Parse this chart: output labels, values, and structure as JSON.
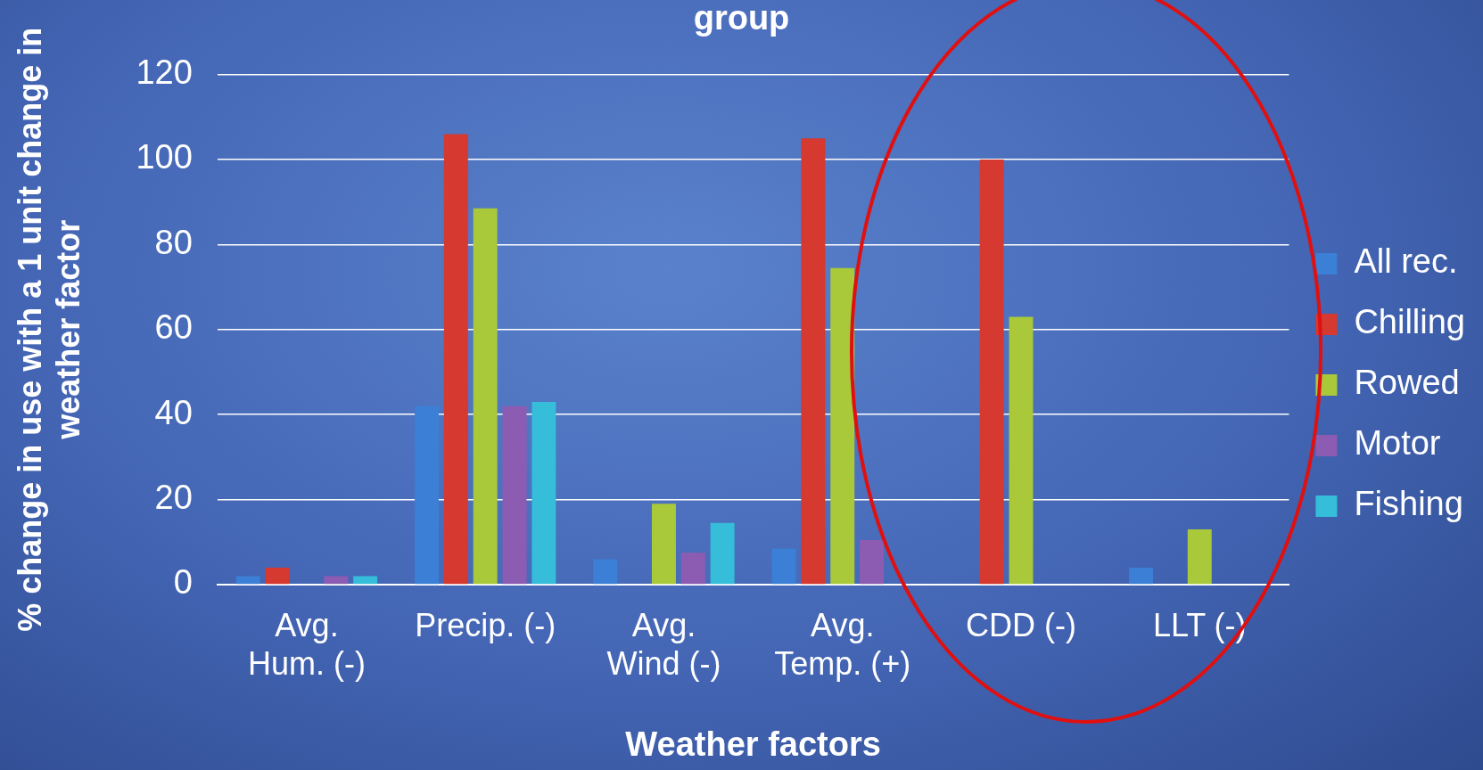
{
  "chart_data": {
    "type": "bar",
    "title": "group",
    "xlabel": "Weather factors",
    "ylabel": "% change in use with a 1 unit change in weather factor",
    "categories": [
      "Avg. Hum. (-)",
      "Precip. (-)",
      "Avg. Wind (-)",
      "Avg. Temp. (+)",
      "CDD (-)",
      "LLT (-)"
    ],
    "series": [
      {
        "name": "All rec.",
        "color": "#3c7fd6",
        "values": [
          2,
          42,
          6,
          8.5,
          null,
          4
        ]
      },
      {
        "name": "Chilling",
        "color": "#d5392f",
        "values": [
          4,
          106,
          null,
          105,
          100,
          null
        ]
      },
      {
        "name": "Rowed",
        "color": "#a9c93a",
        "values": [
          null,
          88.5,
          19,
          74.5,
          63,
          13
        ]
      },
      {
        "name": "Motor",
        "color": "#8c5cb3",
        "values": [
          2,
          42,
          7.5,
          10.5,
          null,
          null
        ]
      },
      {
        "name": "Fishing",
        "color": "#35bdd9",
        "values": [
          2,
          43,
          14.5,
          null,
          null,
          null
        ]
      }
    ],
    "ylim": [
      0,
      120
    ],
    "yticks": [
      0,
      20,
      40,
      60,
      80,
      100,
      120
    ],
    "grid": "y",
    "legend": "right"
  }
}
